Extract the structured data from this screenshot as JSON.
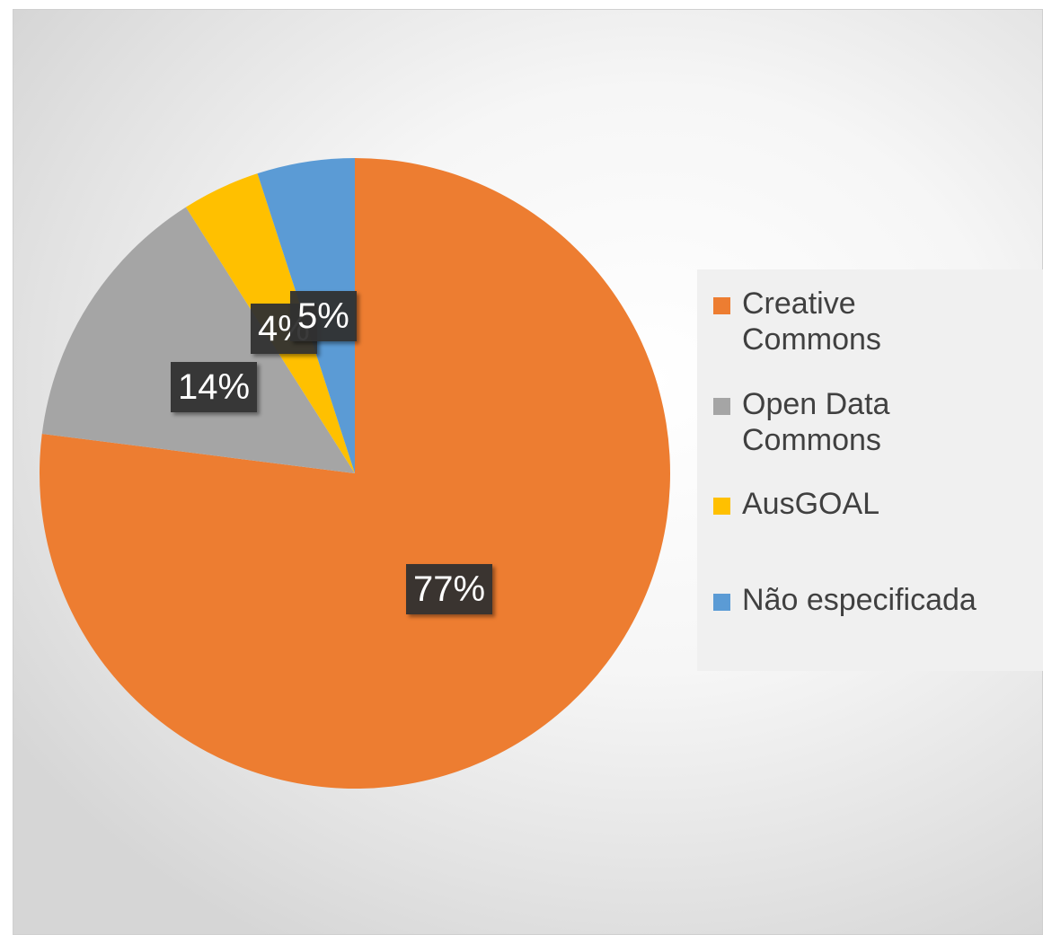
{
  "chart_data": {
    "type": "pie",
    "categories": [
      "Creative Commons",
      "Open Data Commons",
      "AusGOAL",
      "Não especificada"
    ],
    "values": [
      77,
      14,
      4,
      5
    ],
    "data_labels": [
      "77%",
      "14%",
      "4%",
      "5%"
    ],
    "colors": [
      "#ED7D31",
      "#A5A5A5",
      "#FFC000",
      "#5B9BD5"
    ],
    "legend": {
      "position": "right",
      "items": [
        {
          "lines": [
            "Creative",
            "Commons"
          ],
          "color": "#ED7D31"
        },
        {
          "lines": [
            "Open Data",
            "Commons"
          ],
          "color": "#A5A5A5"
        },
        {
          "lines": [
            "AusGOAL"
          ],
          "color": "#FFC000"
        },
        {
          "lines": [
            "Não especificada"
          ],
          "color": "#5B9BD5"
        }
      ]
    }
  }
}
